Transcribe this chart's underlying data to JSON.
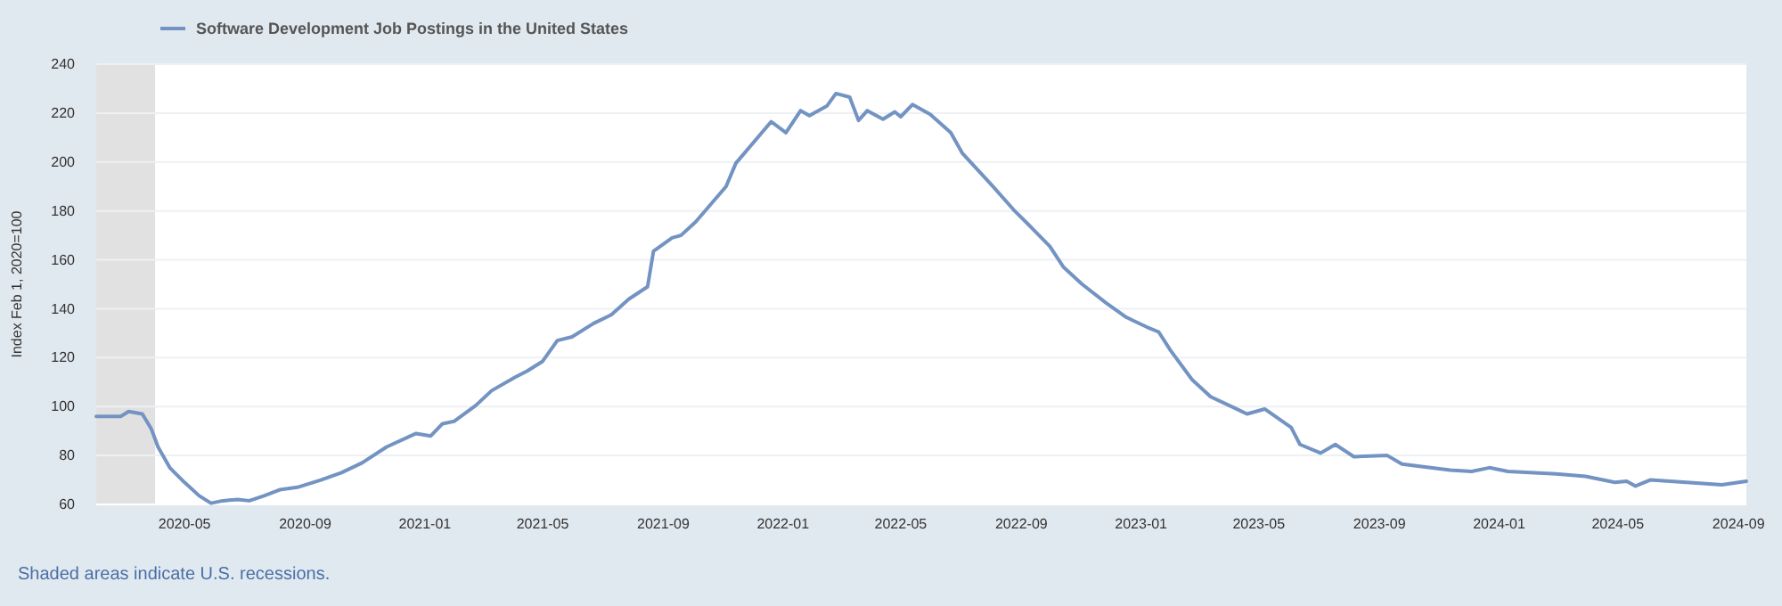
{
  "chart_data": {
    "type": "line",
    "ylabel": "Index Feb 1, 2020=100",
    "legend": "top",
    "grid": "y",
    "annotations": [
      "Shaded areas indicate U.S. recessions."
    ],
    "xlim": [
      "2020-02-01",
      "2024-09-09"
    ],
    "xticks": [
      "2020-05",
      "2020-09",
      "2021-01",
      "2021-05",
      "2021-09",
      "2022-01",
      "2022-05",
      "2022-09",
      "2023-01",
      "2023-05",
      "2023-09",
      "2024-01",
      "2024-05",
      "2024-09"
    ],
    "ylim": [
      60,
      240
    ],
    "yticks": [
      60,
      80,
      100,
      120,
      140,
      160,
      180,
      200,
      220,
      240
    ],
    "bands": [
      {
        "axis": "x",
        "from": "2020-02-01",
        "to": "2020-04-01",
        "color": "#e1e1e1"
      }
    ],
    "x": [
      "2020-02-01",
      "2020-02-26",
      "2020-03-05",
      "2020-03-19",
      "2020-03-28",
      "2020-04-04",
      "2020-04-16",
      "2020-05-01",
      "2020-05-16",
      "2020-05-28",
      "2020-06-09",
      "2020-06-24",
      "2020-07-06",
      "2020-07-21",
      "2020-08-06",
      "2020-08-24",
      "2020-09-17",
      "2020-10-08",
      "2020-10-29",
      "2020-11-23",
      "2020-12-23",
      "2021-01-07",
      "2021-01-19",
      "2021-01-31",
      "2021-02-22",
      "2021-03-10",
      "2021-04-03",
      "2021-04-15",
      "2021-05-01",
      "2021-05-16",
      "2021-05-31",
      "2021-06-22",
      "2021-07-10",
      "2021-07-28",
      "2021-08-16",
      "2021-08-22",
      "2021-09-10",
      "2021-09-19",
      "2021-10-04",
      "2021-11-04",
      "2021-11-14",
      "2021-12-20",
      "2022-01-04",
      "2022-01-19",
      "2022-01-28",
      "2022-02-15",
      "2022-02-24",
      "2022-03-10",
      "2022-03-19",
      "2022-03-28",
      "2022-04-13",
      "2022-04-25",
      "2022-05-01",
      "2022-05-13",
      "2022-05-31",
      "2022-06-21",
      "2022-07-03",
      "2022-08-03",
      "2022-08-24",
      "2022-09-08",
      "2022-09-30",
      "2022-10-14",
      "2022-11-02",
      "2022-11-26",
      "2022-12-17",
      "2023-01-07",
      "2023-01-19",
      "2023-01-31",
      "2023-02-22",
      "2023-03-13",
      "2023-04-06",
      "2023-04-19",
      "2023-05-07",
      "2023-06-03",
      "2023-06-12",
      "2023-07-03",
      "2023-07-18",
      "2023-08-06",
      "2023-09-09",
      "2023-09-24",
      "2023-11-12",
      "2023-12-04",
      "2023-12-22",
      "2024-01-10",
      "2024-02-28",
      "2024-03-29",
      "2024-04-28",
      "2024-05-10",
      "2024-05-19",
      "2024-06-03",
      "2024-07-10",
      "2024-08-15",
      "2024-09-09"
    ],
    "series": [
      {
        "name": "Software Development Job Postings in the United States",
        "color": "#7393c2",
        "values": [
          96,
          96,
          98,
          97,
          91,
          83.5,
          75,
          69,
          63.5,
          60.5,
          61.5,
          62,
          61.5,
          63.5,
          66,
          67,
          70,
          73,
          77,
          83.5,
          89,
          88,
          93,
          94,
          100.5,
          106.5,
          112,
          114.5,
          118.5,
          127,
          128.5,
          134,
          137.5,
          144,
          149,
          163.5,
          169,
          170,
          175.5,
          190,
          199.5,
          216.5,
          212,
          221,
          219,
          223,
          228,
          226.5,
          217,
          221,
          217.5,
          220.5,
          218.5,
          223.5,
          219.5,
          212,
          203.5,
          190,
          180.5,
          174.5,
          165.5,
          157,
          150,
          142.5,
          136.5,
          132.5,
          130.5,
          123,
          111,
          104,
          99.5,
          97,
          99,
          91.5,
          84.5,
          81,
          84.5,
          79.5,
          80,
          76.5,
          74,
          73.5,
          75,
          73.5,
          72.5,
          71.5,
          69,
          69.5,
          67.5,
          70,
          69,
          68,
          69.5
        ]
      }
    ]
  }
}
